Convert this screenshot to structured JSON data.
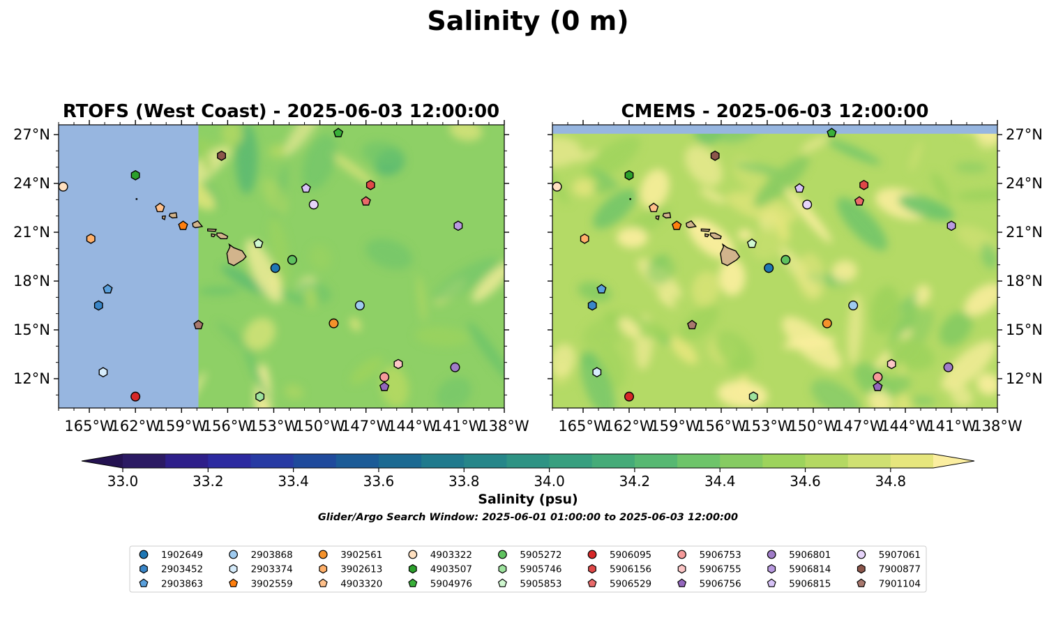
{
  "figure": {
    "title": "Salinity (0 m)",
    "colorbar_label": "Salinity (psu)",
    "search_window": "Glider/Argo Search Window: 2025-06-01 01:00:00 to 2025-06-03 12:00:00"
  },
  "panels": [
    {
      "title": "RTOFS (West Coast) - 2025-06-03 12:00:00",
      "model": "RTOFS (West Coast)"
    },
    {
      "title": "CMEMS - 2025-06-03 12:00:00",
      "model": "CMEMS"
    }
  ],
  "map": {
    "lon_range": [
      -167,
      -138
    ],
    "lat_range": [
      10.2,
      27.6
    ],
    "lon_ticks": [
      {
        "value": -165,
        "label": "165°W"
      },
      {
        "value": -162,
        "label": "162°W"
      },
      {
        "value": -159,
        "label": "159°W"
      },
      {
        "value": -156,
        "label": "156°W"
      },
      {
        "value": -153,
        "label": "153°W"
      },
      {
        "value": -150,
        "label": "150°W"
      },
      {
        "value": -147,
        "label": "147°W"
      },
      {
        "value": -144,
        "label": "144°W"
      },
      {
        "value": -141,
        "label": "141°W"
      },
      {
        "value": -138,
        "label": "138°W"
      }
    ],
    "lat_ticks": [
      {
        "value": 27,
        "label": "27°N"
      },
      {
        "value": 24,
        "label": "24°N"
      },
      {
        "value": 21,
        "label": "21°N"
      },
      {
        "value": 18,
        "label": "18°N"
      },
      {
        "value": 15,
        "label": "15°N"
      },
      {
        "value": 12,
        "label": "12°N"
      }
    ],
    "rtofs_data_west_edge_lon": -157.9,
    "cmems_data_north_edge_lat": 27.05,
    "no_data_color": "#97b6e0",
    "land_color": "#d2b48c"
  },
  "colorbar": {
    "vmin": 33.0,
    "vmax": 34.9,
    "step": 0.1,
    "colors": [
      "#2b1a63",
      "#2e1f8a",
      "#2c2aa0",
      "#273aa3",
      "#1f4a9c",
      "#1b5b97",
      "#1b6a92",
      "#207a8d",
      "#268689",
      "#2e9384",
      "#379f7f",
      "#45ab78",
      "#57b872",
      "#6ec46a",
      "#86cb62",
      "#9dd35c",
      "#b4d862",
      "#cfe072",
      "#e6e67d"
    ],
    "under_color": "#241251",
    "over_color": "#fbeea0",
    "ticks": [
      {
        "value": 33.0,
        "label": "33.0"
      },
      {
        "value": 33.2,
        "label": "33.2"
      },
      {
        "value": 33.4,
        "label": "33.4"
      },
      {
        "value": 33.6,
        "label": "33.6"
      },
      {
        "value": 33.8,
        "label": "33.8"
      },
      {
        "value": 34.0,
        "label": "34.0"
      },
      {
        "value": 34.2,
        "label": "34.2"
      },
      {
        "value": 34.4,
        "label": "34.4"
      },
      {
        "value": 34.6,
        "label": "34.6"
      },
      {
        "value": 34.8,
        "label": "34.8"
      }
    ]
  },
  "floats": [
    {
      "id": "1902649",
      "marker": "circle",
      "color": "#1f77b4",
      "lon": -152.9,
      "lat": 18.8
    },
    {
      "id": "2903452",
      "marker": "hexagon",
      "color": "#3a86c8",
      "lon": -164.4,
      "lat": 16.5
    },
    {
      "id": "2903863",
      "marker": "pentagon",
      "color": "#5aa0dc",
      "lon": -163.8,
      "lat": 17.5
    },
    {
      "id": "2903868",
      "marker": "circle",
      "color": "#9fcbf0",
      "lon": -147.4,
      "lat": 16.5
    },
    {
      "id": "2903374",
      "marker": "hexagon",
      "color": "#d6ecfb",
      "lon": -164.1,
      "lat": 12.4
    },
    {
      "id": "3902559",
      "marker": "pentagon",
      "color": "#ff7f0e",
      "lon": -158.9,
      "lat": 21.4
    },
    {
      "id": "3902561",
      "marker": "circle",
      "color": "#f5922b",
      "lon": -149.1,
      "lat": 15.4
    },
    {
      "id": "3902613",
      "marker": "hexagon",
      "color": "#ffb06a",
      "lon": -164.9,
      "lat": 20.6
    },
    {
      "id": "4903320",
      "marker": "pentagon",
      "color": "#ffc08a",
      "lon": -160.4,
      "lat": 22.5
    },
    {
      "id": "4903322",
      "marker": "circle",
      "color": "#ffe0c0",
      "lon": -166.7,
      "lat": 23.8
    },
    {
      "id": "4903507",
      "marker": "hexagon",
      "color": "#2ca02c",
      "lon": -162.0,
      "lat": 24.5
    },
    {
      "id": "5904976",
      "marker": "pentagon",
      "color": "#39b039",
      "lon": -148.8,
      "lat": 27.1
    },
    {
      "id": "5905272",
      "marker": "circle",
      "color": "#5fc25f",
      "lon": -151.8,
      "lat": 19.3
    },
    {
      "id": "5905746",
      "marker": "hexagon",
      "color": "#9ee39e",
      "lon": -153.9,
      "lat": 10.9
    },
    {
      "id": "5905853",
      "marker": "pentagon",
      "color": "#d0f8d0",
      "lon": -154.0,
      "lat": 20.3
    },
    {
      "id": "5906095",
      "marker": "circle",
      "color": "#d62728",
      "lon": -162.0,
      "lat": 10.9
    },
    {
      "id": "5906156",
      "marker": "hexagon",
      "color": "#e04848",
      "lon": -146.7,
      "lat": 23.9
    },
    {
      "id": "5906529",
      "marker": "pentagon",
      "color": "#ea6a6a",
      "lon": -147.0,
      "lat": 22.9
    },
    {
      "id": "5906753",
      "marker": "circle",
      "color": "#f59a9a",
      "lon": -145.8,
      "lat": 12.1
    },
    {
      "id": "5906755",
      "marker": "hexagon",
      "color": "#fcc6c6",
      "lon": -144.9,
      "lat": 12.9
    },
    {
      "id": "5906756",
      "marker": "pentagon",
      "color": "#9467bd",
      "lon": -145.8,
      "lat": 11.5
    },
    {
      "id": "5906801",
      "marker": "circle",
      "color": "#a07cc8",
      "lon": -141.2,
      "lat": 12.7
    },
    {
      "id": "5906814",
      "marker": "hexagon",
      "color": "#b99ae0",
      "lon": -141.0,
      "lat": 21.4
    },
    {
      "id": "5906815",
      "marker": "pentagon",
      "color": "#d6c2f6",
      "lon": -150.9,
      "lat": 23.7
    },
    {
      "id": "5907061",
      "marker": "circle",
      "color": "#e6d4fa",
      "lon": -150.4,
      "lat": 22.7
    },
    {
      "id": "7900877",
      "marker": "hexagon",
      "color": "#8c564b",
      "lon": -156.4,
      "lat": 25.7
    },
    {
      "id": "7901104",
      "marker": "pentagon",
      "color": "#a8786e",
      "lon": -157.9,
      "lat": 15.3
    }
  ],
  "legend_order": [
    "1902649",
    "2903452",
    "2903863",
    "2903868",
    "2903374",
    "3902559",
    "3902561",
    "3902613",
    "4903320",
    "4903322",
    "4903507",
    "5904976",
    "5905272",
    "5905746",
    "5905853",
    "5906095",
    "5906156",
    "5906529",
    "5906753",
    "5906755",
    "5906756",
    "5906801",
    "5906814",
    "5906815",
    "5907061",
    "7900877",
    "7901104"
  ]
}
